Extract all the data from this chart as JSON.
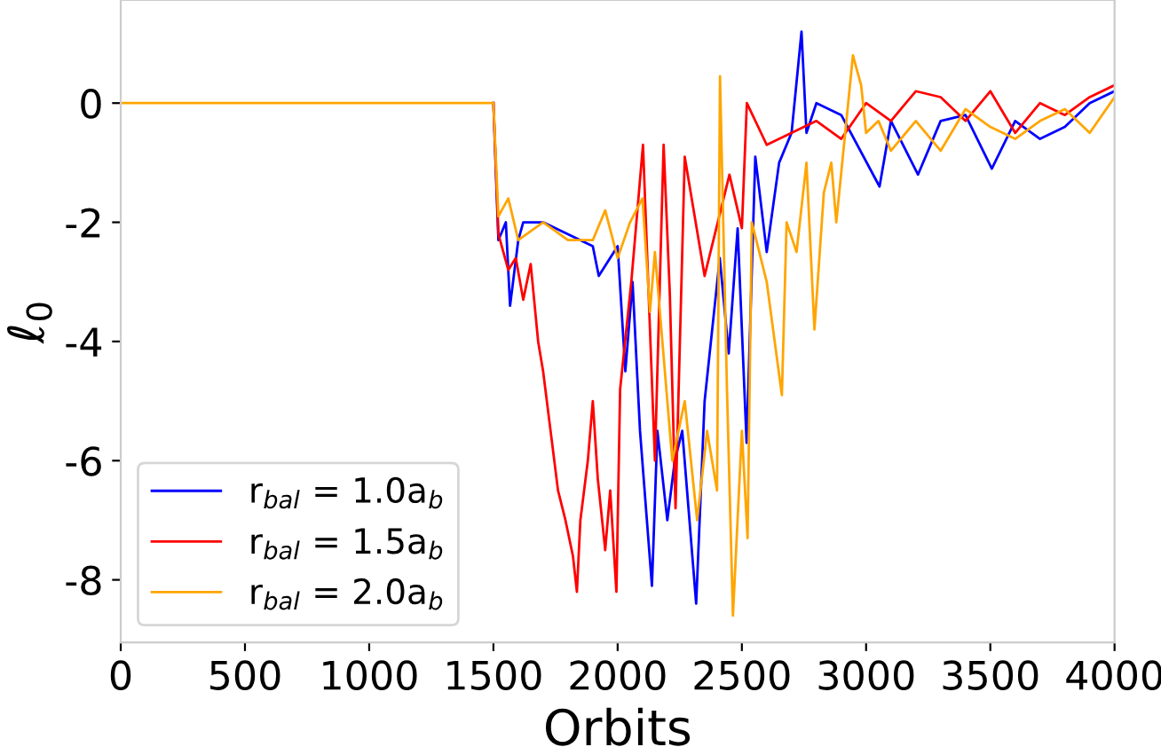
{
  "chart_data": {
    "type": "line",
    "xlabel": "Orbits",
    "ylabel": "ℓ$_{0}$",
    "xlim": [
      0,
      4000
    ],
    "ylim": [
      -9.05,
      1.73
    ],
    "xticks": [
      0,
      500,
      1000,
      1500,
      2000,
      2500,
      3000,
      3500,
      4000
    ],
    "yticks": [
      -8,
      -6,
      -4,
      -2,
      0
    ],
    "grid": false,
    "legend": "bottom left",
    "line_style": "solid",
    "marker": "none",
    "series": [
      {
        "name": "r$_{bal}$ = 1.0a$_{b}$",
        "color": "#0000ff",
        "x": [
          1500,
          1520,
          1550,
          1567,
          1600,
          1620,
          1700,
          1800,
          1900,
          1924,
          2000,
          2031,
          2060,
          2090,
          2138,
          2160,
          2200,
          2230,
          2260,
          2316,
          2350,
          2411,
          2447,
          2483,
          2519,
          2554,
          2600,
          2650,
          2700,
          2740,
          2760,
          2800,
          2900,
          3054,
          3100,
          3209,
          3300,
          3400,
          3506,
          3600,
          3700,
          3800,
          3900,
          4000
        ],
        "values": [
          0,
          -2.3,
          -2.0,
          -3.4,
          -2.3,
          -2.0,
          -2.0,
          -2.2,
          -2.4,
          -2.9,
          -2.4,
          -4.5,
          -3.0,
          -5.5,
          -8.1,
          -5.5,
          -7.0,
          -6.0,
          -5.5,
          -8.4,
          -5.0,
          -2.6,
          -4.2,
          -2.1,
          -5.7,
          -0.9,
          -2.5,
          -1.0,
          -0.5,
          1.2,
          -0.5,
          0,
          -0.2,
          -1.4,
          -0.3,
          -1.2,
          -0.3,
          -0.2,
          -1.1,
          -0.3,
          -0.6,
          -0.4,
          0,
          0.2
        ]
      },
      {
        "name": "r$_{bal}$ = 1.5a$_{b}$",
        "color": "#ff0000",
        "x": [
          1500,
          1520,
          1560,
          1590,
          1620,
          1650,
          1680,
          1700,
          1730,
          1760,
          1790,
          1820,
          1836,
          1850,
          1880,
          1900,
          1920,
          1950,
          1970,
          1995,
          2010,
          2055,
          2102,
          2150,
          2185,
          2210,
          2233,
          2270,
          2350,
          2450,
          2500,
          2520,
          2600,
          2700,
          2800,
          2900,
          3000,
          3100,
          3200,
          3300,
          3400,
          3500,
          3600,
          3700,
          3800,
          3900,
          4000
        ],
        "values": [
          0,
          -2.2,
          -2.8,
          -2.6,
          -3.3,
          -2.7,
          -4.0,
          -4.5,
          -5.5,
          -6.5,
          -7.0,
          -7.6,
          -8.2,
          -7.0,
          -6.0,
          -5.0,
          -6.3,
          -7.5,
          -6.5,
          -8.2,
          -4.8,
          -3.0,
          -0.7,
          -6.0,
          -0.7,
          -3.2,
          -6.8,
          -0.9,
          -2.9,
          -1.2,
          -2.1,
          0,
          -0.7,
          -0.5,
          -0.3,
          -0.6,
          0,
          -0.3,
          0.2,
          0.1,
          -0.3,
          0.2,
          -0.5,
          0,
          -0.2,
          0.1,
          0.3
        ]
      },
      {
        "name": "r$_{bal}$ = 2.0a$_{b}$",
        "color": "#ffa500",
        "x": [
          0,
          1490,
          1500,
          1520,
          1560,
          1600,
          1700,
          1800,
          1900,
          1950,
          2000,
          2050,
          2100,
          2130,
          2150,
          2180,
          2220,
          2270,
          2320,
          2360,
          2400,
          2412,
          2440,
          2464,
          2500,
          2523,
          2540,
          2570,
          2600,
          2661,
          2680,
          2720,
          2760,
          2792,
          2830,
          2860,
          2880,
          2947,
          2980,
          3000,
          3050,
          3100,
          3200,
          3300,
          3400,
          3500,
          3600,
          3700,
          3800,
          3900,
          4000
        ],
        "values": [
          0,
          0,
          0,
          -1.9,
          -1.6,
          -2.3,
          -2.0,
          -2.3,
          -2.3,
          -1.8,
          -2.6,
          -2.0,
          -1.6,
          -3.5,
          -2.5,
          -4.0,
          -6.0,
          -5.0,
          -7.0,
          -5.5,
          -6.5,
          0.45,
          -4.8,
          -8.6,
          -5.5,
          -7.3,
          -2.0,
          -2.5,
          -3.0,
          -4.9,
          -2.0,
          -2.5,
          -1.0,
          -3.8,
          -1.5,
          -1.0,
          -2.0,
          0.8,
          0.3,
          -0.5,
          -0.3,
          -0.8,
          -0.3,
          -0.8,
          -0.1,
          -0.4,
          -0.6,
          -0.3,
          -0.1,
          -0.5,
          0.1
        ]
      }
    ]
  }
}
